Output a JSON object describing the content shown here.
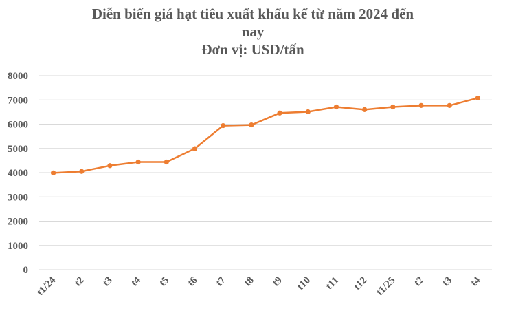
{
  "chart_data": {
    "type": "line",
    "title_lines": [
      "Diễn biến giá hạt tiêu xuất khẩu kể từ năm 2024 đến",
      "nay",
      "Đơn vị: USD/tấn"
    ],
    "categories": [
      "t1/24",
      "t2",
      "t3",
      "t4",
      "t5",
      "t6",
      "t7",
      "t8",
      "t9",
      "t10",
      "t11",
      "t12",
      "t1/25",
      "t2",
      "t3",
      "t4"
    ],
    "series": [
      {
        "values": [
          3990,
          4050,
          4290,
          4440,
          4440,
          4990,
          5940,
          5970,
          6460,
          6510,
          6710,
          6600,
          6710,
          6770,
          6770,
          7080
        ],
        "color": "#ED7D31"
      }
    ],
    "yticks": [
      0,
      1000,
      2000,
      3000,
      4000,
      5000,
      6000,
      7000,
      8000
    ],
    "ylim": [
      0,
      8000
    ],
    "grid": true,
    "legend": "none",
    "gridColor": "#D9D9D9"
  }
}
